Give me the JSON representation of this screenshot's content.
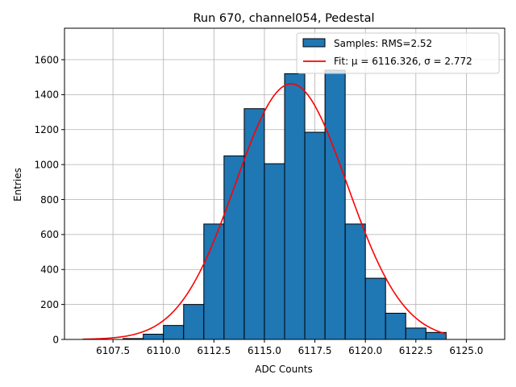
{
  "chart_data": {
    "type": "bar",
    "title": "Run 670, channel054, Pedestal",
    "xlabel": "ADC Counts",
    "ylabel": "Entries",
    "xlim": [
      6105.1,
      6126.9
    ],
    "ylim": [
      0,
      1780
    ],
    "xticks": [
      6107.5,
      6110.0,
      6112.5,
      6115.0,
      6117.5,
      6120.0,
      6122.5,
      6125.0
    ],
    "xtick_labels": [
      "6107.5",
      "6110.0",
      "6112.5",
      "6115.0",
      "6117.5",
      "6120.0",
      "6122.5",
      "6125.0"
    ],
    "yticks": [
      0,
      200,
      400,
      600,
      800,
      1000,
      1200,
      1400,
      1600
    ],
    "ytick_labels": [
      "0",
      "200",
      "400",
      "600",
      "800",
      "1000",
      "1200",
      "1400",
      "1600"
    ],
    "grid": true,
    "legend_position": "top-right",
    "histogram": {
      "name": "Samples: RMS=2.52",
      "color": "#1f77b4",
      "edge_color": "#000000",
      "bin_edges": [
        6108,
        6109,
        6110,
        6111,
        6112,
        6113,
        6114,
        6115,
        6116,
        6117,
        6118,
        6119,
        6120,
        6121,
        6122,
        6123,
        6124
      ],
      "counts": [
        5,
        30,
        80,
        200,
        660,
        1050,
        1320,
        1005,
        1520,
        1185,
        1540,
        660,
        350,
        150,
        65,
        40
      ]
    },
    "fit": {
      "name": "Fit: μ = 6116.326, σ = 2.772",
      "color": "#ff0000",
      "mu": 6116.326,
      "sigma": 2.772,
      "amplitude": 1462,
      "x_range": [
        6106,
        6124
      ]
    }
  }
}
